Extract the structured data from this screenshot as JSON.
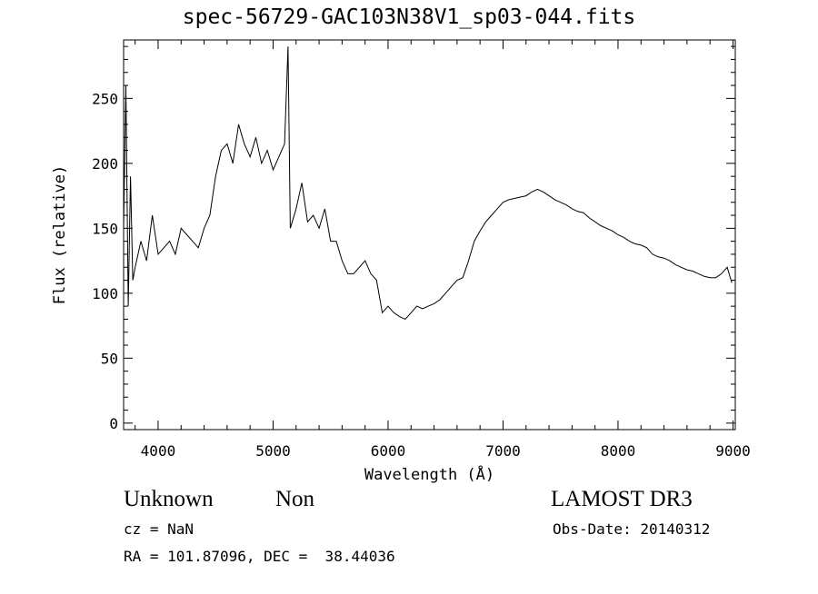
{
  "header": {
    "title": "spec-56729-GAC103N38V1_sp03-044.fits"
  },
  "info": {
    "object_type": "Unknown",
    "object_subtype": "Non",
    "survey": "LAMOST DR3",
    "cz": "cz = NaN",
    "obs_date": "Obs-Date: 20140312",
    "radec": "RA = 101.87096, DEC =  38.44036"
  },
  "chart_data": {
    "type": "line",
    "title": "spec-56729-GAC103N38V1_sp03-044.fits",
    "xlabel": "Wavelength (Å)",
    "ylabel": "Flux (relative)",
    "xlim": [
      3700,
      9020
    ],
    "ylim": [
      -5,
      295
    ],
    "x_ticks": [
      4000,
      5000,
      6000,
      7000,
      8000,
      9000
    ],
    "y_ticks": [
      0,
      50,
      100,
      150,
      200,
      250
    ],
    "grid": false,
    "legend": "none",
    "line_color": "#000000",
    "series": [
      {
        "x": [
          3700,
          3720,
          3740,
          3760,
          3780,
          3800,
          3850,
          3900,
          3950,
          4000,
          4050,
          4100,
          4150,
          4200,
          4250,
          4300,
          4350,
          4400,
          4450,
          4500,
          4550,
          4600,
          4650,
          4700,
          4750,
          4800,
          4850,
          4900,
          4950,
          5000,
          5050,
          5100,
          5130,
          5150,
          5200,
          5250,
          5300,
          5350,
          5400,
          5450,
          5500,
          5550,
          5600,
          5650,
          5700,
          5750,
          5800,
          5850,
          5900,
          5950,
          6000,
          6050,
          6100,
          6150,
          6200,
          6250,
          6300,
          6350,
          6400,
          6450,
          6500,
          6550,
          6600,
          6650,
          6700,
          6750,
          6800,
          6850,
          6900,
          6950,
          7000,
          7050,
          7100,
          7150,
          7200,
          7250,
          7300,
          7350,
          7400,
          7450,
          7500,
          7550,
          7600,
          7650,
          7700,
          7750,
          7800,
          7850,
          7900,
          7950,
          8000,
          8050,
          8100,
          8150,
          8200,
          8250,
          8300,
          8350,
          8400,
          8450,
          8500,
          8550,
          8600,
          8650,
          8700,
          8750,
          8800,
          8850,
          8900,
          8950,
          8990
        ],
        "y": [
          150,
          260,
          90,
          190,
          110,
          120,
          140,
          125,
          160,
          130,
          135,
          140,
          130,
          150,
          145,
          140,
          135,
          150,
          160,
          190,
          210,
          215,
          200,
          230,
          215,
          205,
          220,
          200,
          210,
          195,
          205,
          215,
          290,
          150,
          165,
          185,
          155,
          160,
          150,
          165,
          140,
          140,
          125,
          115,
          115,
          120,
          125,
          115,
          110,
          85,
          90,
          85,
          82,
          80,
          85,
          90,
          88,
          90,
          92,
          95,
          100,
          105,
          110,
          112,
          125,
          140,
          148,
          155,
          160,
          165,
          170,
          172,
          173,
          174,
          175,
          178,
          180,
          178,
          175,
          172,
          170,
          168,
          165,
          163,
          162,
          158,
          155,
          152,
          150,
          148,
          145,
          143,
          140,
          138,
          137,
          135,
          130,
          128,
          127,
          125,
          122,
          120,
          118,
          117,
          115,
          113,
          112,
          112,
          115,
          120,
          108
        ]
      }
    ]
  }
}
